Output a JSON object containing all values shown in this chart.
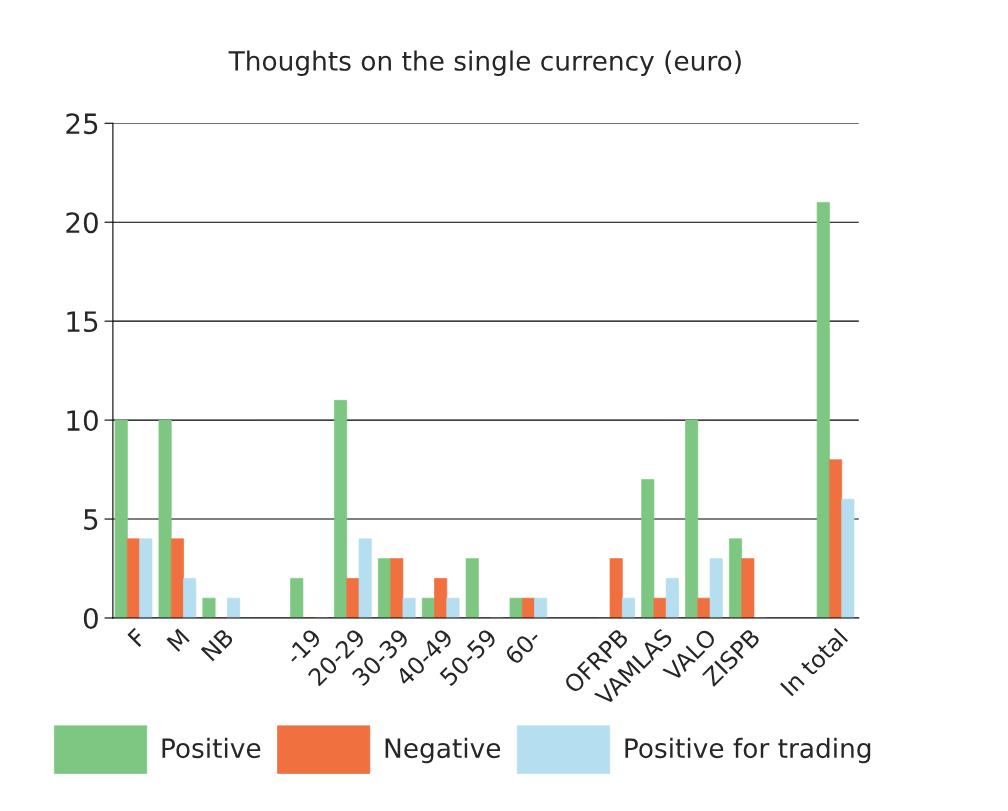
{
  "chart_data": {
    "type": "bar",
    "title": "Thoughts on the single currency (euro)",
    "categories": [
      "F",
      "M",
      "NB",
      null,
      "-19",
      "20-29",
      "30-39",
      "40-49",
      "50-59",
      "60-",
      null,
      "OFRPB",
      "VAMLAS",
      "VALO",
      "ZISPB",
      null,
      "In total"
    ],
    "series": [
      {
        "name": "Positive",
        "color": "#7dc783",
        "values": [
          10,
          10,
          1,
          null,
          2,
          11,
          3,
          1,
          3,
          1,
          null,
          0,
          7,
          10,
          4,
          null,
          21
        ]
      },
      {
        "name": "Negative",
        "color": "#f07040",
        "values": [
          4,
          4,
          0,
          null,
          0,
          2,
          3,
          2,
          0,
          1,
          null,
          3,
          1,
          1,
          3,
          null,
          8
        ]
      },
      {
        "name": "Positive for trading",
        "color": "#b5def0",
        "values": [
          4,
          2,
          1,
          null,
          0,
          4,
          1,
          1,
          0,
          1,
          null,
          1,
          2,
          3,
          0,
          null,
          6
        ]
      }
    ],
    "ylim": [
      0,
      25
    ],
    "yticks": [
      0,
      5,
      10,
      15,
      20,
      25
    ],
    "grid": "y",
    "legend": "bottom"
  }
}
